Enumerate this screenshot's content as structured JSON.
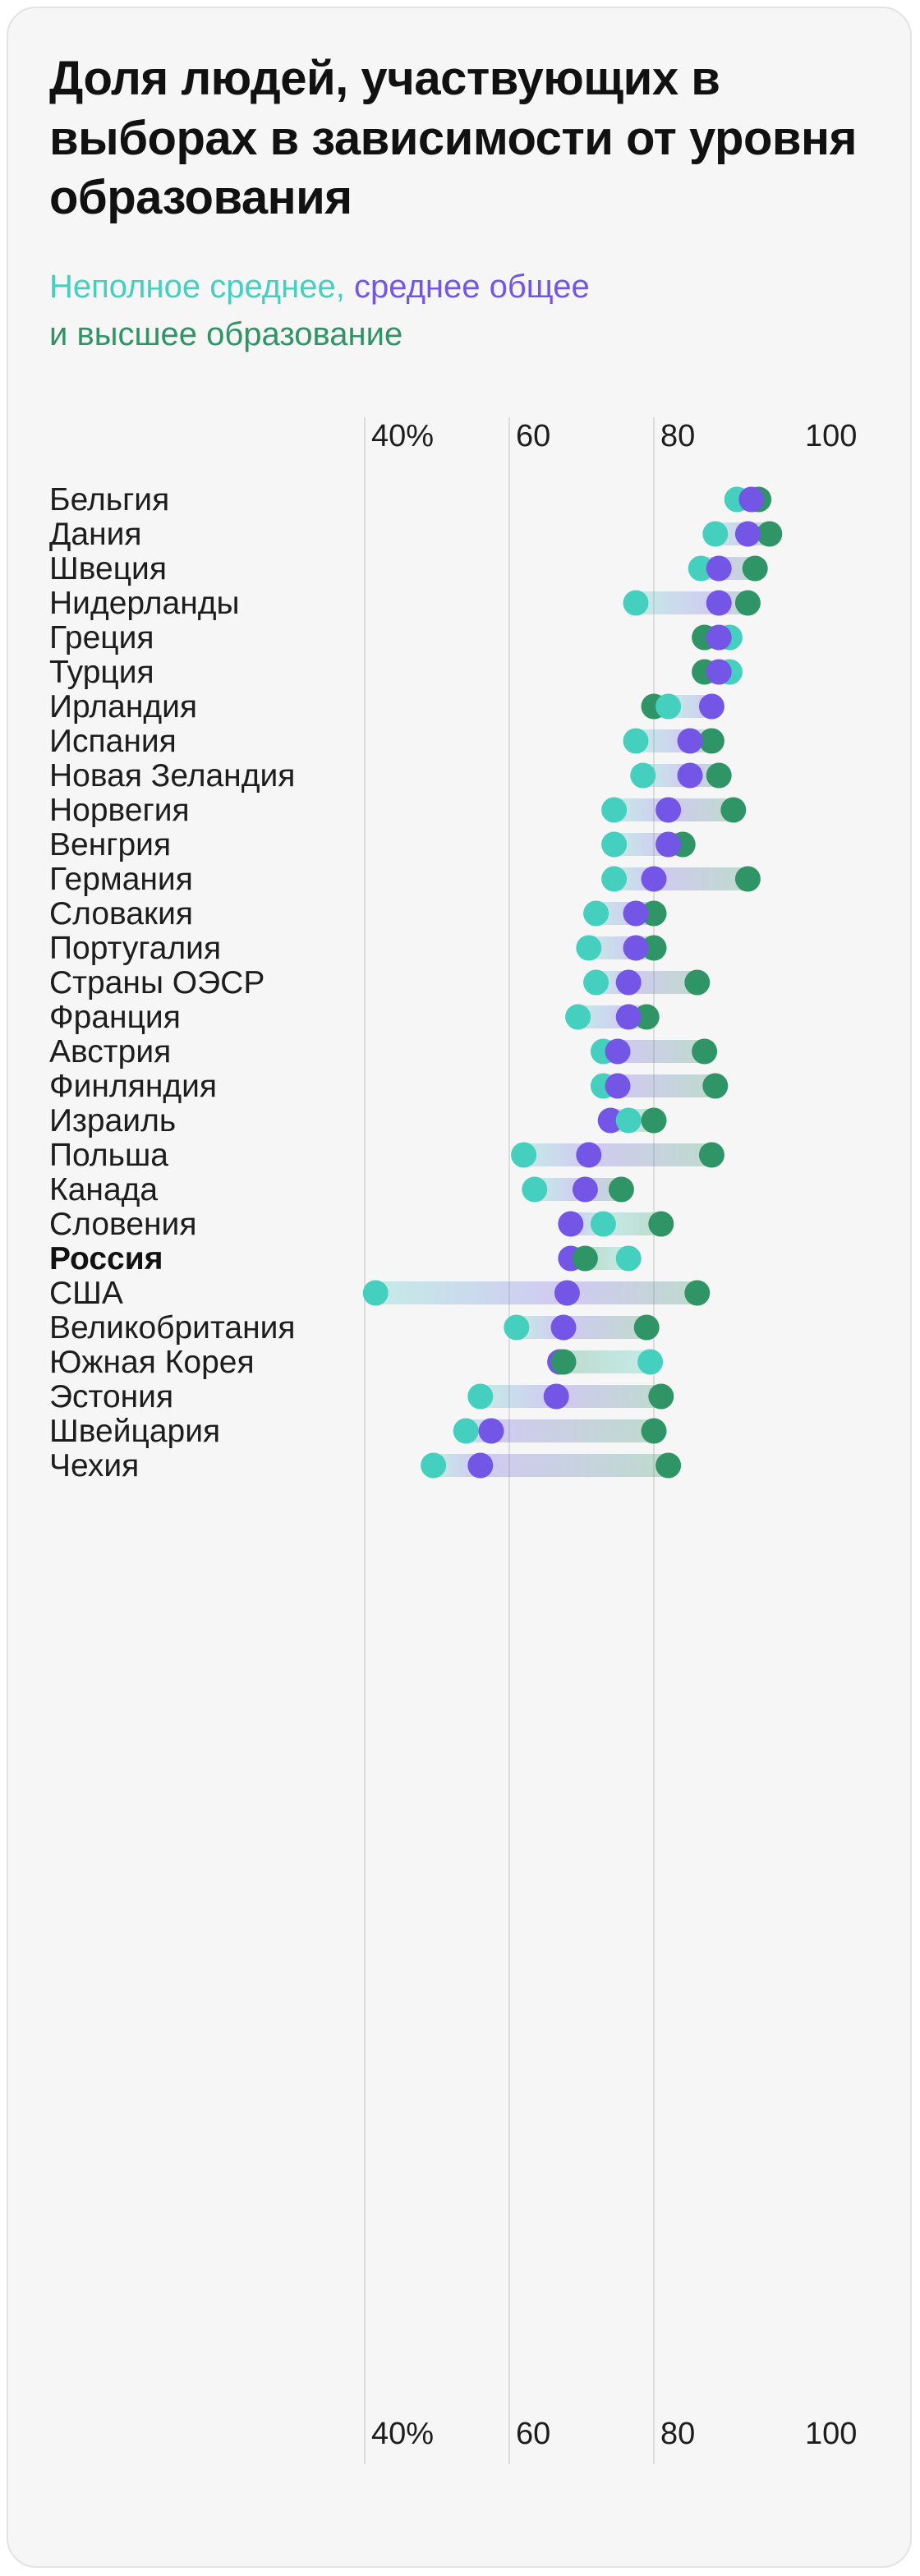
{
  "title": "Доля людей, участвующих в выборах в зависимости от уровня образования",
  "subtitle": {
    "part_low": "Неполное среднее,",
    "part_mid": "среднее общее",
    "part_high": "и высшее образование"
  },
  "colors": {
    "low": "#45cfbf",
    "mid": "#7356e6",
    "high": "#2f9466"
  },
  "chart_data": {
    "type": "scatter",
    "subtype": "dumbbell",
    "xlim": [
      40,
      100
    ],
    "ticks": [
      {
        "value": 40,
        "label": "40%"
      },
      {
        "value": 60,
        "label": "60"
      },
      {
        "value": 80,
        "label": "80"
      },
      {
        "value": 100,
        "label": "100"
      }
    ],
    "grid": true,
    "categories": [
      "Бельгия",
      "Дания",
      "Швеция",
      "Нидерланды",
      "Греция",
      "Турция",
      "Ирландия",
      "Испания",
      "Новая Зеландия",
      "Норвегия",
      "Венгрия",
      "Германия",
      "Словакия",
      "Португалия",
      "Страны ОЭСР",
      "Франция",
      "Австрия",
      "Финляндия",
      "Израиль",
      "Польша",
      "Канада",
      "Словения",
      "Россия",
      "США",
      "Великобритания",
      "Южная Корея",
      "Эстония",
      "Швейцария",
      "Чехия"
    ],
    "highlight": "Россия",
    "series": [
      {
        "name": "Неполное среднее",
        "values": [
          91.5,
          88.5,
          86.5,
          77.5,
          90.5,
          90.5,
          82,
          77.5,
          78.5,
          74.5,
          74.5,
          74.5,
          72,
          71,
          72,
          69.5,
          73,
          73,
          76.5,
          62,
          63.5,
          73,
          76.5,
          41.5,
          61,
          79.5,
          56,
          54,
          49.5
        ]
      },
      {
        "name": "среднее общее",
        "values": [
          93.5,
          93,
          89,
          89,
          89,
          89,
          88,
          85,
          85,
          82,
          82,
          80,
          77.5,
          77.5,
          76.5,
          76.5,
          75,
          75,
          74,
          71,
          70.5,
          68.5,
          68.5,
          68,
          67.5,
          67,
          66.5,
          57.5,
          56
        ]
      },
      {
        "name": "высшее образование",
        "values": [
          94.5,
          96,
          94,
          93,
          87,
          87,
          80,
          88,
          89,
          91,
          84,
          93,
          80,
          80,
          86,
          79,
          87,
          88.5,
          80,
          88,
          75.5,
          81,
          70.5,
          86,
          79,
          67.5,
          81,
          80,
          82
        ]
      }
    ]
  }
}
